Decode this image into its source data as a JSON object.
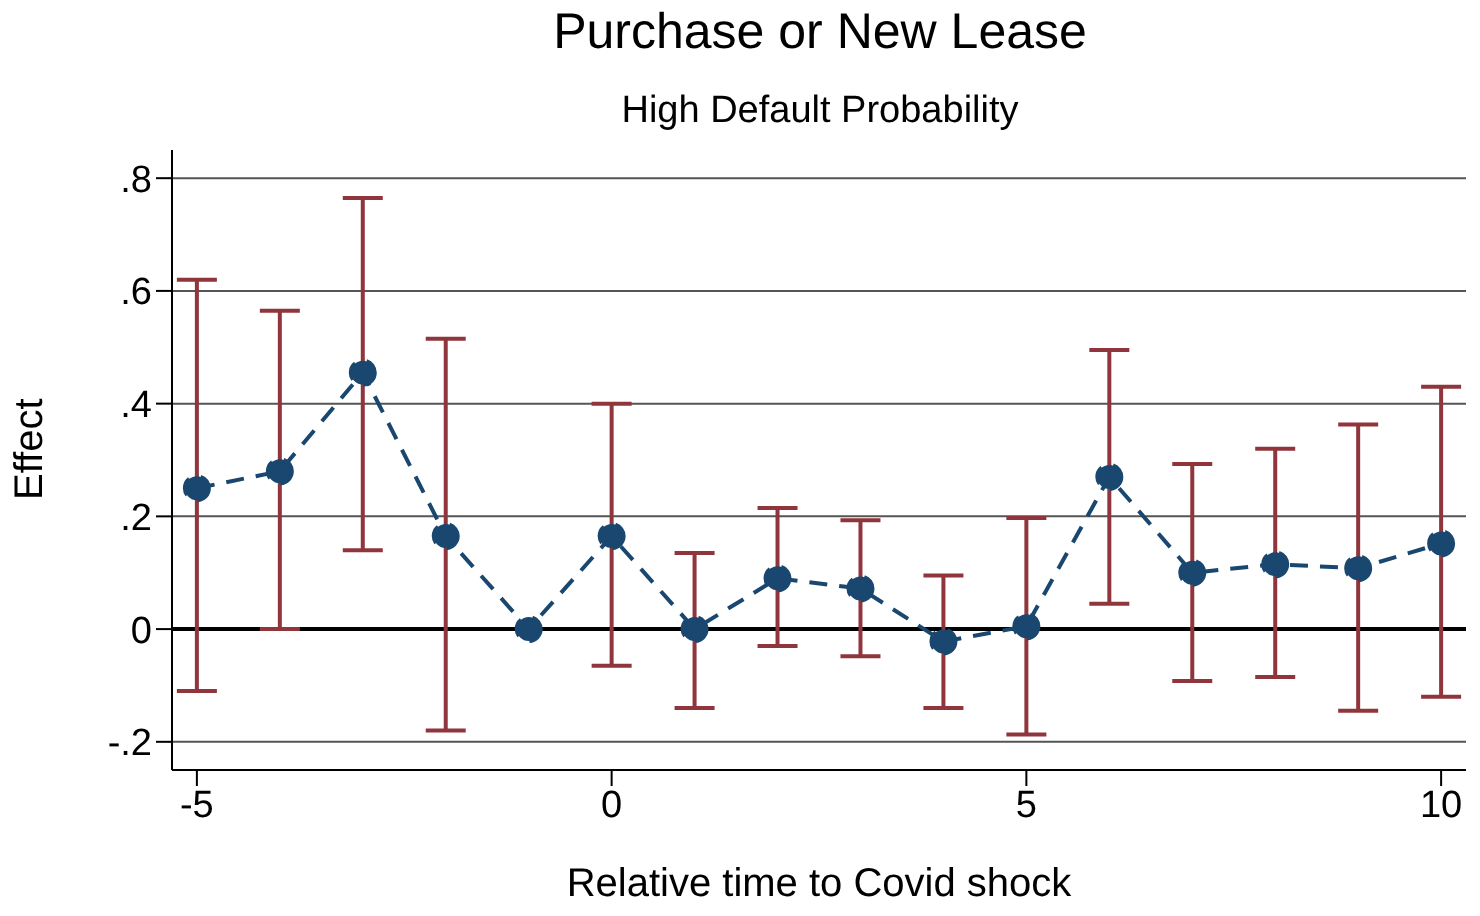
{
  "chart_data": {
    "type": "line",
    "title": "Purchase or New Lease",
    "subtitle": "High Default Probability",
    "xlabel": "Relative time to Covid shock",
    "ylabel": "Effect",
    "x": [
      -5,
      -4,
      -3,
      -2,
      -1,
      0,
      1,
      2,
      3,
      4,
      5,
      6,
      7,
      8,
      9,
      10
    ],
    "series": [
      {
        "color": "#1a476f",
        "values": [
          0.25,
          0.28,
          0.455,
          0.165,
          0,
          0.165,
          0,
          0.09,
          0.072,
          -0.022,
          0.005,
          0.27,
          0.1,
          0.115,
          0.108,
          0.152
        ],
        "errors": [
          [
            -0.11,
            0.62
          ],
          [
            0,
            0.565
          ],
          [
            0.14,
            0.765
          ],
          [
            -0.18,
            0.515
          ],
          null,
          [
            -0.065,
            0.4
          ],
          [
            -0.14,
            0.135
          ],
          [
            -0.03,
            0.215
          ],
          [
            -0.048,
            0.193
          ],
          [
            -0.14,
            0.095
          ],
          [
            -0.187,
            0.197
          ],
          [
            0.045,
            0.495
          ],
          [
            -0.092,
            0.293
          ],
          [
            -0.085,
            0.32
          ],
          [
            -0.145,
            0.363
          ],
          [
            -0.12,
            0.43
          ]
        ]
      }
    ],
    "xlim": [
      -5.3,
      10.3
    ],
    "xticks": [
      -5,
      0,
      5,
      10
    ],
    "ylim": [
      -0.25,
      0.85
    ],
    "yticks": [
      {
        "value": -0.2,
        "label": "-.2"
      },
      0,
      {
        "value": 0.2,
        "label": ".2"
      },
      {
        "value": 0.4,
        "label": ".4"
      },
      {
        "value": 0.6,
        "label": ".6"
      },
      {
        "value": 0.8,
        "label": ".8"
      }
    ],
    "ref_lines": [
      {
        "axis": "y",
        "value": 0,
        "color": "#000000"
      }
    ],
    "grid": "y",
    "marker": "circle",
    "line_style": "dashed",
    "legend": false
  }
}
